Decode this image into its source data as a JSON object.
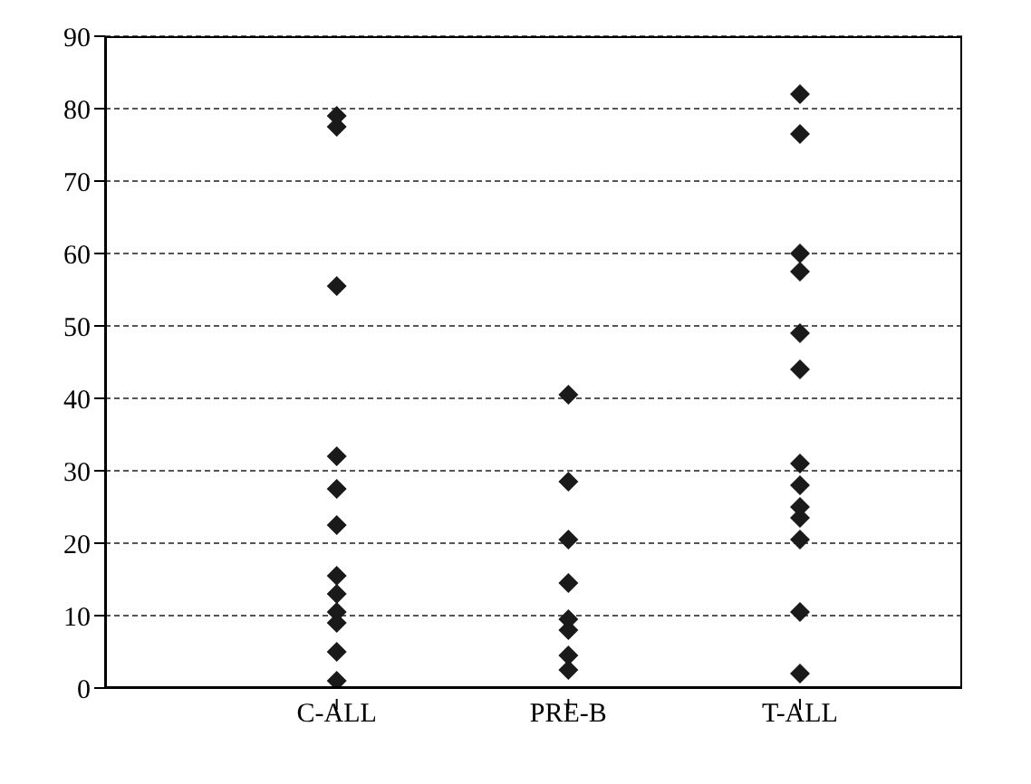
{
  "chart_data": {
    "type": "scatter",
    "categories": [
      "C-ALL",
      "PRE-B",
      "T-ALL"
    ],
    "series": [
      {
        "color": "#1a1a1a",
        "x": [
          "C-ALL",
          "C-ALL",
          "C-ALL",
          "C-ALL",
          "C-ALL",
          "C-ALL",
          "C-ALL",
          "C-ALL",
          "C-ALL",
          "C-ALL",
          "C-ALL",
          "C-ALL",
          "PRE-B",
          "PRE-B",
          "PRE-B",
          "PRE-B",
          "PRE-B",
          "PRE-B",
          "PRE-B",
          "PRE-B",
          "T-ALL",
          "T-ALL",
          "T-ALL",
          "T-ALL",
          "T-ALL",
          "T-ALL",
          "T-ALL",
          "T-ALL",
          "T-ALL",
          "T-ALL",
          "T-ALL",
          "T-ALL",
          "T-ALL"
        ],
        "values": [
          79,
          77.5,
          55.5,
          32,
          27.5,
          22.5,
          15.5,
          13,
          10.5,
          9,
          5,
          1,
          40.5,
          28.5,
          20.5,
          14.5,
          9.5,
          8,
          4.5,
          2.5,
          82,
          76.5,
          60,
          57.5,
          49,
          44,
          31,
          28,
          25,
          23.5,
          20.5,
          10.5,
          2
        ]
      }
    ],
    "ylim": [
      0,
      90
    ],
    "yticks": [
      0,
      10,
      20,
      30,
      40,
      50,
      60,
      70,
      80,
      90
    ],
    "grid": "y",
    "marker": "diamond",
    "legend": false
  }
}
